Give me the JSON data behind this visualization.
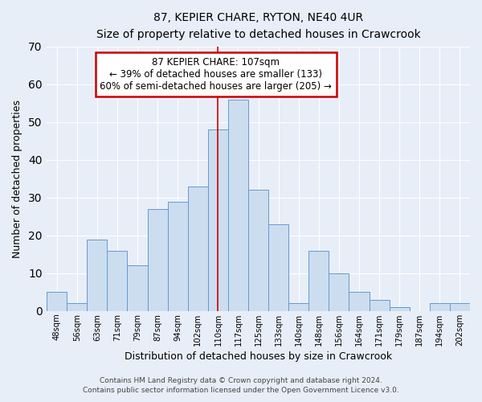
{
  "title": "87, KEPIER CHARE, RYTON, NE40 4UR",
  "subtitle": "Size of property relative to detached houses in Crawcrook",
  "xlabel": "Distribution of detached houses by size in Crawcrook",
  "ylabel": "Number of detached properties",
  "categories": [
    "48sqm",
    "56sqm",
    "63sqm",
    "71sqm",
    "79sqm",
    "87sqm",
    "94sqm",
    "102sqm",
    "110sqm",
    "117sqm",
    "125sqm",
    "133sqm",
    "140sqm",
    "148sqm",
    "156sqm",
    "164sqm",
    "171sqm",
    "179sqm",
    "187sqm",
    "194sqm",
    "202sqm"
  ],
  "values": [
    5,
    2,
    19,
    16,
    12,
    27,
    29,
    33,
    48,
    56,
    32,
    23,
    2,
    16,
    10,
    5,
    3,
    1,
    0,
    2,
    2
  ],
  "bar_color": "#ccddf0",
  "bar_edge_color": "#6699cc",
  "bar_width": 1.0,
  "ylim": [
    0,
    70
  ],
  "yticks": [
    0,
    10,
    20,
    30,
    40,
    50,
    60,
    70
  ],
  "vline_x": 8.0,
  "vline_color": "#cc0000",
  "annotation_title": "87 KEPIER CHARE: 107sqm",
  "annotation_line2": "← 39% of detached houses are smaller (133)",
  "annotation_line3": "60% of semi-detached houses are larger (205) →",
  "annotation_box_color": "#cc0000",
  "background_color": "#e8eef8",
  "grid_color": "#ffffff",
  "footer_line1": "Contains HM Land Registry data © Crown copyright and database right 2024.",
  "footer_line2": "Contains public sector information licensed under the Open Government Licence v3.0."
}
